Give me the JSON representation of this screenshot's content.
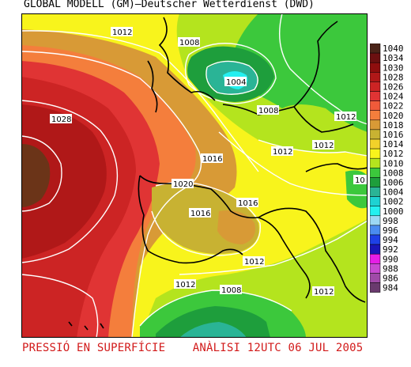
{
  "header": {
    "title": "GLOBAL MODELL (GM)—Deutscher Wetterdienst (DWD)"
  },
  "footer": {
    "left": "PRESSIÓ EN SUPERFÍCIE",
    "right": "ANÀLISI 12UTC 06 JUL 2005"
  },
  "isobar_labels": [
    "1012",
    "1008",
    "1004",
    "1008",
    "1028",
    "1016",
    "1012",
    "1012",
    "1012",
    "1020",
    "1016",
    "1016",
    "1012",
    "1012",
    "1008",
    "1012",
    "10"
  ],
  "legend": {
    "items": [
      {
        "label": "1040",
        "color": "#4a2418"
      },
      {
        "label": "1034",
        "color": "#6b1010"
      },
      {
        "label": "1030",
        "color": "#8f0e0e"
      },
      {
        "label": "1028",
        "color": "#b01818"
      },
      {
        "label": "1026",
        "color": "#cc2424"
      },
      {
        "label": "1024",
        "color": "#e03434"
      },
      {
        "label": "1022",
        "color": "#f05a3a"
      },
      {
        "label": "1020",
        "color": "#f47e3c"
      },
      {
        "label": "1018",
        "color": "#d89a36"
      },
      {
        "label": "1016",
        "color": "#c8b232"
      },
      {
        "label": "1014",
        "color": "#f2d22a"
      },
      {
        "label": "1012",
        "color": "#f8f41c"
      },
      {
        "label": "1010",
        "color": "#b4e41e"
      },
      {
        "label": "1008",
        "color": "#3cc83c"
      },
      {
        "label": "1006",
        "color": "#1e9e3c"
      },
      {
        "label": "1004",
        "color": "#2ab496"
      },
      {
        "label": "1002",
        "color": "#1ed2d2"
      },
      {
        "label": "1000",
        "color": "#24f0f0"
      },
      {
        "label": "998",
        "color": "#9cd8f4"
      },
      {
        "label": "996",
        "color": "#4a8cf0"
      },
      {
        "label": "994",
        "color": "#1e40e6"
      },
      {
        "label": "992",
        "color": "#1a16b8"
      },
      {
        "label": "990",
        "color": "#e61ee6"
      },
      {
        "label": "988",
        "color": "#c84ad2"
      },
      {
        "label": "986",
        "color": "#a04aa8"
      },
      {
        "label": "984",
        "color": "#6a3a6e"
      }
    ]
  }
}
